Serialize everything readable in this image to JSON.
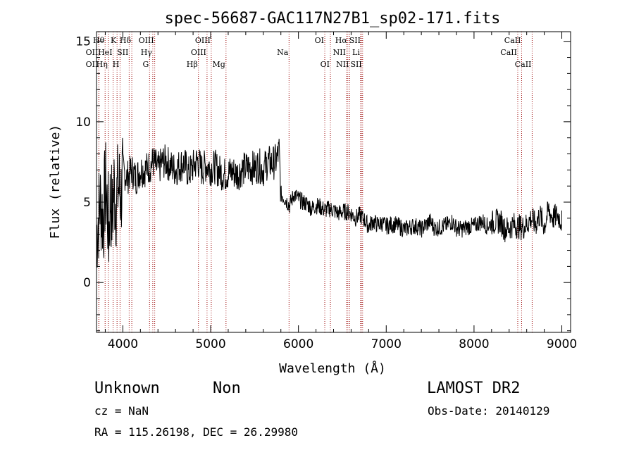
{
  "chart_data": {
    "type": "line",
    "title": "spec-56687-GAC117N27B1_sp02-171.fits",
    "xlabel": "Wavelength (Å)",
    "ylabel": "Flux (relative)",
    "xlim": [
      3700,
      9100
    ],
    "ylim": [
      -3.1,
      15.6
    ],
    "x_ticks": [
      4000,
      5000,
      6000,
      7000,
      8000,
      9000
    ],
    "y_ticks": [
      0,
      5,
      10,
      15
    ],
    "grid": false,
    "line_color": "#000000",
    "marker_line_color": "#a01010",
    "spectrum": {
      "name": "",
      "x": [
        3700,
        3740,
        3780,
        3800,
        3820,
        3840,
        3860,
        3880,
        3900,
        3920,
        3950,
        3980,
        4000,
        4050,
        4100,
        4150,
        4200,
        4250,
        4300,
        4350,
        4400,
        4450,
        4500,
        4550,
        4600,
        4650,
        4700,
        4750,
        4800,
        4850,
        4900,
        4950,
        5000,
        5050,
        5100,
        5150,
        5200,
        5250,
        5300,
        5350,
        5400,
        5450,
        5500,
        5550,
        5600,
        5650,
        5700,
        5750,
        5780,
        5800,
        5850,
        5900,
        5950,
        6000,
        6050,
        6100,
        6150,
        6200,
        6250,
        6300,
        6350,
        6400,
        6450,
        6500,
        6550,
        6600,
        6650,
        6700,
        6750,
        6800,
        6850,
        6900,
        6950,
        7000,
        7050,
        7100,
        7150,
        7200,
        7250,
        7300,
        7350,
        7400,
        7450,
        7500,
        7550,
        7600,
        7650,
        7700,
        7750,
        7800,
        7850,
        7900,
        7950,
        8000,
        8050,
        8100,
        8150,
        8200,
        8250,
        8300,
        8350,
        8400,
        8450,
        8500,
        8550,
        8600,
        8650,
        8700,
        8750,
        8800,
        8850,
        8900,
        8950,
        9000
      ],
      "y": [
        3.0,
        5.0,
        4.0,
        6.0,
        5.0,
        3.0,
        5.5,
        4.0,
        6.0,
        5.0,
        6.0,
        5.5,
        7.0,
        6.5,
        7.0,
        6.5,
        7.0,
        7.0,
        7.2,
        7.5,
        7.0,
        7.5,
        7.5,
        7.2,
        7.0,
        7.3,
        7.4,
        6.8,
        7.2,
        7.6,
        7.0,
        7.3,
        7.1,
        7.2,
        6.9,
        6.7,
        6.8,
        6.9,
        6.7,
        7.0,
        7.1,
        7.2,
        7.1,
        7.3,
        7.0,
        7.5,
        7.4,
        7.6,
        8.2,
        5.5,
        5.2,
        4.8,
        5.5,
        5.2,
        5.0,
        4.9,
        4.6,
        4.8,
        4.7,
        4.5,
        4.6,
        4.5,
        4.3,
        4.4,
        4.4,
        4.3,
        4.0,
        4.2,
        3.9,
        3.5,
        3.8,
        3.6,
        3.7,
        3.5,
        3.6,
        3.6,
        3.5,
        3.3,
        3.4,
        3.5,
        3.5,
        3.3,
        3.6,
        3.8,
        3.4,
        3.4,
        3.5,
        3.6,
        3.8,
        3.4,
        3.3,
        3.4,
        3.5,
        3.5,
        3.7,
        3.8,
        3.5,
        3.7,
        3.8,
        3.8,
        3.3,
        3.4,
        3.6,
        3.5,
        3.4,
        3.6,
        4.0,
        3.6,
        4.2,
        3.5,
        4.5,
        4.0,
        4.2,
        3.8
      ]
    },
    "lines": [
      {
        "label": "OII",
        "x": 3727,
        "row": 2,
        "side": "left"
      },
      {
        "label": "Hθ",
        "x": 3798,
        "row": 1,
        "side": "left"
      },
      {
        "label": "OII",
        "x": 3727,
        "row": 3,
        "side": "left"
      },
      {
        "label": "Hη",
        "x": 3835,
        "row": 3,
        "side": "left"
      },
      {
        "label": "K",
        "x": 3934,
        "row": 1,
        "side": "left"
      },
      {
        "label": "H",
        "x": 3968,
        "row": 3,
        "side": "left"
      },
      {
        "label": "HeI",
        "x": 3889,
        "row": 2,
        "side": "left"
      },
      {
        "label": "SII",
        "x": 4072,
        "row": 2,
        "side": "left"
      },
      {
        "label": "Hδ",
        "x": 4102,
        "row": 1,
        "side": "left"
      },
      {
        "label": "OIII",
        "x": 4363,
        "row": 1,
        "side": "left"
      },
      {
        "label": "Hγ",
        "x": 4341,
        "row": 2,
        "side": "left"
      },
      {
        "label": "G",
        "x": 4304,
        "row": 3,
        "side": "left"
      },
      {
        "label": "Hβ",
        "x": 4861,
        "row": 3,
        "side": "left"
      },
      {
        "label": "OIII",
        "x": 5007,
        "row": 1,
        "side": "left"
      },
      {
        "label": "OIII",
        "x": 4959,
        "row": 2,
        "side": "left"
      },
      {
        "label": "Mg",
        "x": 5175,
        "row": 3,
        "side": "left"
      },
      {
        "label": "Na",
        "x": 5893,
        "row": 2,
        "side": "left"
      },
      {
        "label": "OI",
        "x": 6300,
        "row": 1,
        "side": "left"
      },
      {
        "label": "OI",
        "x": 6364,
        "row": 3,
        "side": "left"
      },
      {
        "label": "Hα",
        "x": 6563,
        "row": 1,
        "side": "left"
      },
      {
        "label": "NII",
        "x": 6548,
        "row": 2,
        "side": "left"
      },
      {
        "label": "NII",
        "x": 6584,
        "row": 3,
        "side": "left"
      },
      {
        "label": "SII",
        "x": 6717,
        "row": 1,
        "side": "left"
      },
      {
        "label": "Li",
        "x": 6708,
        "row": 2,
        "side": "left"
      },
      {
        "label": "SII",
        "x": 6731,
        "row": 3,
        "side": "left"
      },
      {
        "label": "CaII",
        "x": 8542,
        "row": 1,
        "side": "left"
      },
      {
        "label": "CaII",
        "x": 8498,
        "row": 2,
        "side": "left"
      },
      {
        "label": "CaII",
        "x": 8662,
        "row": 3,
        "side": "left"
      }
    ]
  },
  "info": {
    "object_class": "Unknown",
    "subclass": "Non",
    "survey": "LAMOST DR2",
    "cz": "cz = NaN",
    "obs_date": "Obs-Date: 20140129",
    "coords": "RA = 115.26198, DEC =  26.29980"
  }
}
